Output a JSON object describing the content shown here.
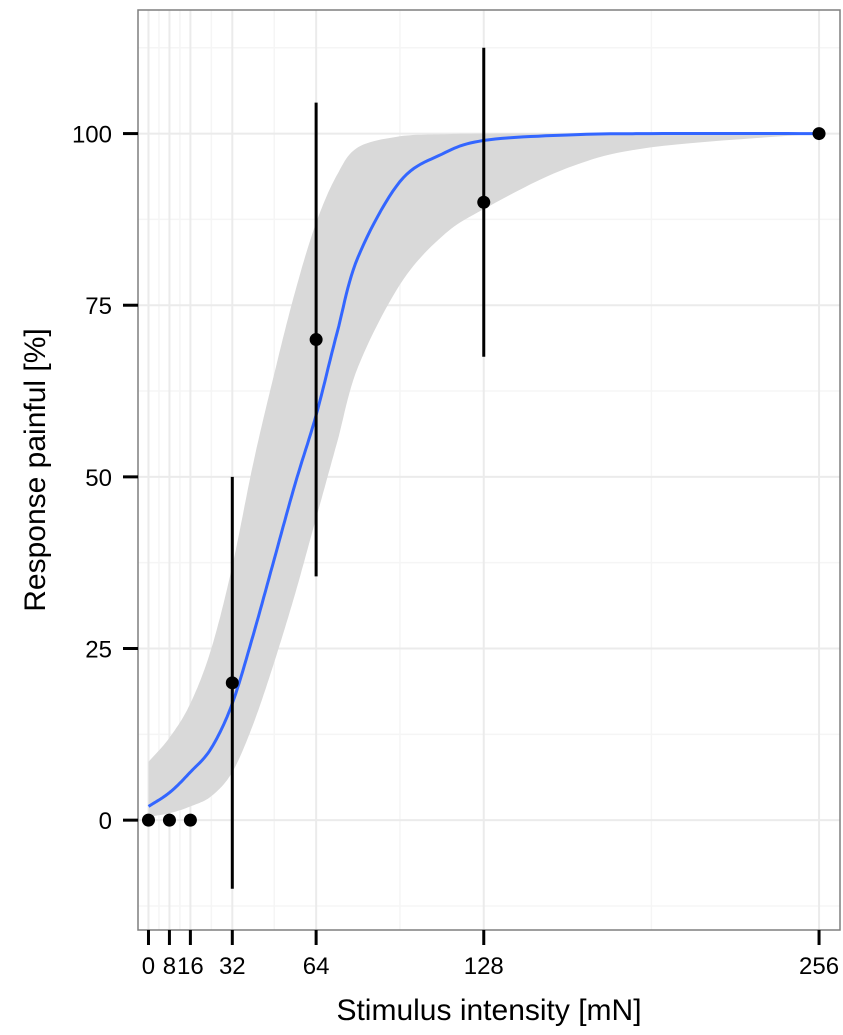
{
  "chart_data": {
    "type": "scatter",
    "xlabel": "Stimulus intensity [mN]",
    "ylabel": "Response painful [%]",
    "xlim": [
      -4,
      264
    ],
    "ylim": [
      -16,
      118
    ],
    "x_ticks": [
      0,
      8,
      16,
      32,
      64,
      128,
      256
    ],
    "y_ticks": [
      0,
      25,
      50,
      75,
      100
    ],
    "grid": true,
    "points": [
      {
        "x": 0,
        "y": 0
      },
      {
        "x": 8,
        "y": 0
      },
      {
        "x": 16,
        "y": 0
      },
      {
        "x": 32,
        "y": 20,
        "ymin": -10,
        "ymax": 50
      },
      {
        "x": 64,
        "y": 70,
        "ymin": 35.5,
        "ymax": 104.5
      },
      {
        "x": 128,
        "y": 90,
        "ymin": 67.5,
        "ymax": 112.5
      },
      {
        "x": 256,
        "y": 100
      }
    ],
    "fit_curve": {
      "x": [
        0,
        8,
        16,
        24,
        32,
        40,
        48,
        56,
        64,
        72,
        80,
        96,
        112,
        128,
        160,
        192,
        256
      ],
      "y": [
        2,
        4,
        7,
        10.5,
        17,
        27,
        38,
        49,
        59,
        71,
        82,
        93,
        97,
        99,
        99.8,
        100,
        100
      ],
      "ci_lower": [
        0.5,
        1,
        2,
        3.5,
        7,
        14,
        23,
        33,
        44,
        55,
        66,
        78,
        85,
        89,
        95,
        98,
        100
      ],
      "ci_upper": [
        8.5,
        12,
        17,
        25,
        37,
        52,
        65,
        77,
        87,
        94,
        98,
        99.6,
        99.9,
        100,
        100,
        100,
        100
      ]
    },
    "colors": {
      "fit_line": "#3366ff",
      "ci_band": "#d9d9d9",
      "points": "#000000",
      "error_bars": "#000000",
      "grid_major": "#ebebeb",
      "grid_minor": "#f5f5f5",
      "panel_border": "#7f7f7f"
    }
  }
}
